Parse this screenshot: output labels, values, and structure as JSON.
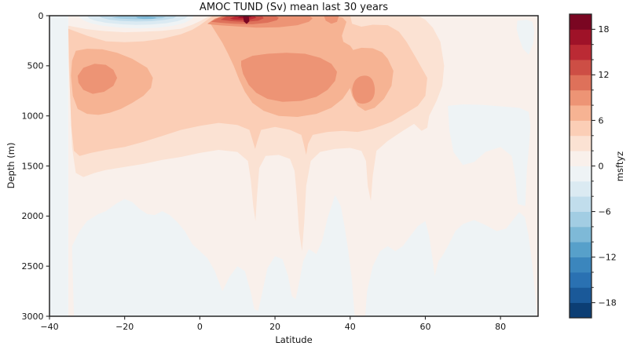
{
  "title": "AMOC TUND (Sv) mean last 30 years",
  "figure": {
    "background": "#ffffff",
    "frame_color": "#262626",
    "text_color": "#141414"
  },
  "axes": {
    "xlabel": "Latitude",
    "ylabel": "Depth (m)",
    "x_ticks": [
      "−40",
      "−20",
      "0",
      "20",
      "40",
      "60",
      "80"
    ],
    "x_tick_values": [
      -40,
      -20,
      0,
      20,
      40,
      60,
      80
    ],
    "y_ticks": [
      "0",
      "500",
      "1000",
      "1500",
      "2000",
      "2500",
      "3000"
    ],
    "y_tick_values": [
      0,
      500,
      1000,
      1500,
      2000,
      2500,
      3000
    ],
    "xlim": [
      -40,
      90
    ],
    "ylim": [
      0,
      3000
    ],
    "y_inverted": true
  },
  "colorbar": {
    "label": "msftyz",
    "vmin": -20,
    "vmax": 20,
    "level_step": 2,
    "colormap": "RdBu_r",
    "tick_labels": [
      "18",
      "12",
      "6",
      "0",
      "−6",
      "−12",
      "−18"
    ],
    "tick_values": [
      18,
      12,
      6,
      0,
      -6,
      -12,
      -18
    ],
    "minor_tick_values": [
      16,
      14,
      10,
      8,
      4,
      2,
      -2,
      -4,
      -8,
      -10,
      -14,
      -16
    ],
    "band_colors": [
      "#0c3e74",
      "#1a5999",
      "#2a71b2",
      "#3b86bd",
      "#57a0ca",
      "#7eb9d7",
      "#a2cde3",
      "#c1ddec",
      "#dbeaf2",
      "#eef3f5",
      "#f9f0eb",
      "#fbe2d3",
      "#fbceb6",
      "#f6b393",
      "#ed9475",
      "#de715a",
      "#cd4e45",
      "#bb2a34",
      "#9f1228",
      "#7a0622"
    ]
  },
  "chart_data": {
    "type": "heatmap",
    "subtype": "filled_contour",
    "title": "AMOC TUND (Sv) mean last 30 years",
    "xlabel": "Latitude",
    "ylabel": "Depth (m)",
    "units": "Sv",
    "colorbar_label": "msftyz",
    "colormap": "RdBu_r",
    "levels": [
      -20,
      -18,
      -16,
      -14,
      -12,
      -10,
      -8,
      -6,
      -4,
      -2,
      0,
      2,
      4,
      6,
      8,
      10,
      12,
      14,
      16,
      18,
      20
    ],
    "xlim": [
      -40,
      90
    ],
    "ylim": [
      0,
      3000
    ],
    "y_axis_inverted": true,
    "lat_range_with_data": [
      -35,
      90
    ],
    "x_latitudes": [
      -35,
      -30,
      -25,
      -20,
      -15,
      -10,
      -5,
      0,
      5,
      10,
      15,
      20,
      25,
      30,
      35,
      40,
      45,
      50,
      55,
      60,
      65,
      70,
      75,
      80,
      85,
      90
    ],
    "y_depths_m": [
      0,
      100,
      250,
      500,
      750,
      1000,
      1500,
      2000,
      2500,
      3000
    ],
    "values_sv": [
      [
        1,
        -1,
        -3,
        -5,
        -6,
        -4,
        -2,
        1,
        13,
        19,
        13,
        10,
        9,
        8,
        8,
        5,
        3,
        3,
        2,
        1,
        1,
        1,
        1,
        1,
        -1,
        1
      ],
      [
        3,
        2,
        1,
        -1,
        -2,
        -1,
        1,
        3,
        7,
        9,
        9,
        8,
        8,
        7,
        7,
        6,
        5,
        4,
        3,
        2,
        1,
        1,
        1,
        1,
        -1,
        1
      ],
      [
        4,
        5,
        4,
        4,
        3,
        3,
        3,
        4,
        6,
        6,
        7,
        7,
        7,
        7,
        7,
        6,
        7,
        6,
        4,
        3,
        1,
        1,
        1,
        1,
        1,
        1
      ],
      [
        5,
        7,
        8,
        8,
        7,
        5,
        4,
        4,
        5,
        7,
        8,
        9,
        9,
        9,
        8,
        8,
        9,
        7,
        5,
        4,
        1,
        1,
        1,
        1,
        1,
        1
      ],
      [
        5,
        8,
        9,
        9,
        7,
        5,
        5,
        5,
        6,
        8,
        9,
        9,
        9,
        9,
        8,
        9,
        9,
        6,
        4,
        3,
        1,
        1,
        1,
        1,
        1,
        1
      ],
      [
        4,
        6,
        7,
        6,
        5,
        5,
        4,
        4,
        5,
        6,
        7,
        7,
        7,
        7,
        6,
        5,
        5,
        4,
        3,
        2,
        1,
        -1,
        -1,
        -1,
        1,
        1
      ],
      [
        2,
        3,
        3,
        3,
        2,
        2,
        2,
        2,
        3,
        3,
        3,
        3,
        3,
        2,
        2,
        2,
        3,
        2,
        1,
        1,
        1,
        -1,
        -1,
        -1,
        1,
        1
      ],
      [
        1,
        -1,
        -1,
        -1,
        -1,
        -1,
        -1,
        -1,
        1,
        1,
        1,
        1,
        1,
        1,
        -1,
        1,
        1,
        1,
        1,
        1,
        1,
        -1,
        -1,
        -1,
        -1,
        1
      ],
      [
        1,
        -1,
        -1,
        -1,
        -1,
        -1,
        -1,
        -1,
        -1,
        1,
        1,
        -1,
        1,
        -1,
        -1,
        -1,
        1,
        -1,
        -1,
        -1,
        1,
        -1,
        1,
        -1,
        -1,
        1
      ],
      [
        1,
        -1,
        -1,
        -1,
        -1,
        -1,
        -1,
        -1,
        -1,
        1,
        -1,
        -1,
        -1,
        -1,
        -1,
        1,
        1,
        -1,
        -1,
        -1,
        -1,
        -1,
        -1,
        -1,
        -1,
        1
      ]
    ],
    "notable_features": {
      "surface_maximum_sv": 19,
      "surface_maximum_location": {
        "lat": 12,
        "depth_m": 20
      },
      "surface_minimum_sv": -7,
      "surface_minimum_location": {
        "lat": -15,
        "depth_m": 30
      }
    },
    "grid": false,
    "legend_position": "right-colorbar"
  }
}
